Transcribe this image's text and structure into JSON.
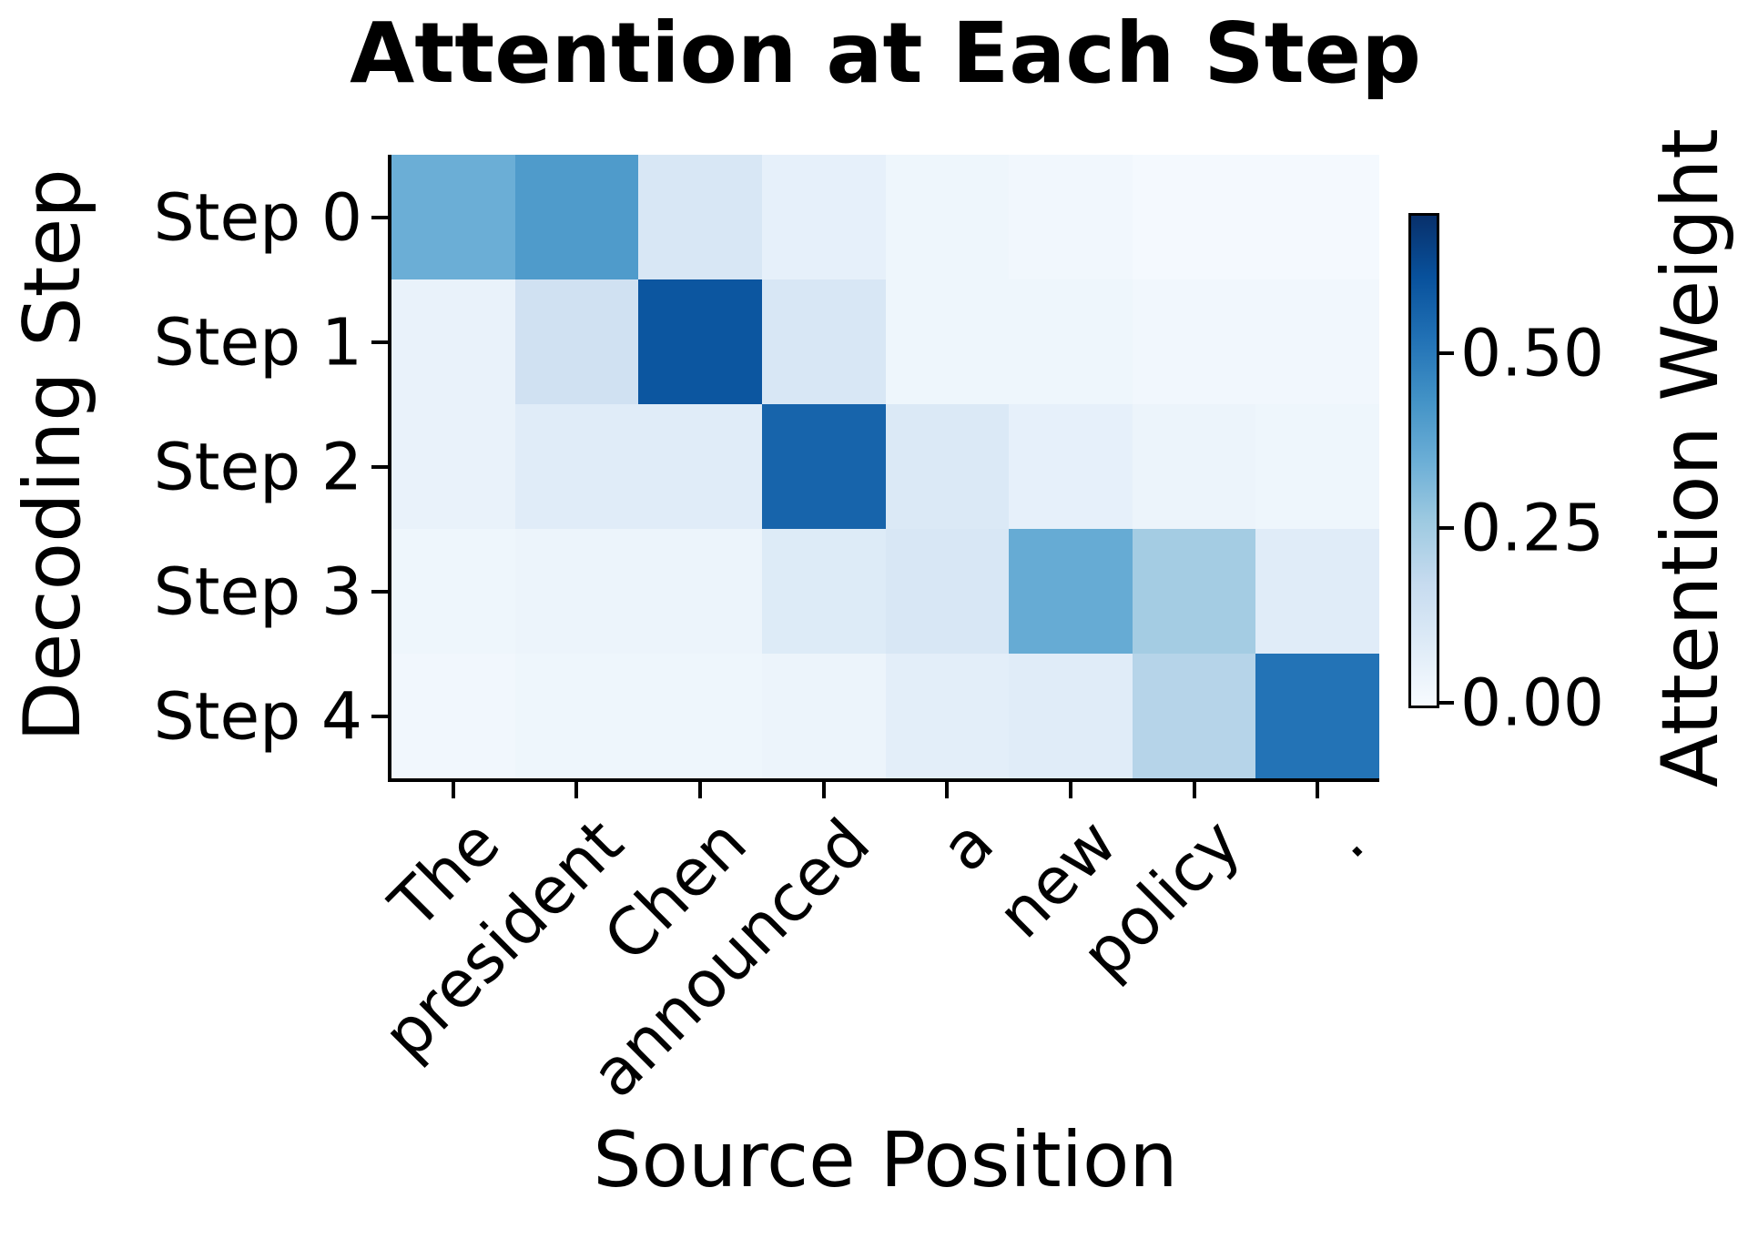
{
  "chart_data": {
    "type": "heatmap",
    "title": "Attention at Each Step",
    "xlabel": "Source Position",
    "ylabel": "Decoding Step",
    "x_labels": [
      "The",
      "president",
      "Chen",
      "announced",
      "a",
      "new",
      "policy",
      "."
    ],
    "y_labels": [
      "Step 0",
      "Step 1",
      "Step 2",
      "Step 3",
      "Step 4"
    ],
    "values": [
      [
        0.35,
        0.41,
        0.11,
        0.06,
        0.03,
        0.02,
        0.01,
        0.01
      ],
      [
        0.05,
        0.14,
        0.6,
        0.11,
        0.03,
        0.03,
        0.02,
        0.02
      ],
      [
        0.05,
        0.08,
        0.08,
        0.56,
        0.1,
        0.06,
        0.04,
        0.03
      ],
      [
        0.03,
        0.04,
        0.04,
        0.09,
        0.11,
        0.36,
        0.25,
        0.08
      ],
      [
        0.02,
        0.03,
        0.03,
        0.04,
        0.07,
        0.08,
        0.21,
        0.52
      ]
    ],
    "colorbar": {
      "label": "Attention Weight",
      "tick_labels": [
        "0.50",
        "0.25",
        "0.00"
      ],
      "tick_values": [
        0.5,
        0.25,
        0.0
      ],
      "vmin": 0.0,
      "vmax": 0.7,
      "colormap": "Blues",
      "colormap_stops": [
        "#f7fbff",
        "#deebf7",
        "#c6dbef",
        "#9ecae1",
        "#6baed6",
        "#4292c6",
        "#2171b5",
        "#08519c",
        "#08306b"
      ]
    },
    "grid": false,
    "legend": null,
    "x_tick_rotation_deg": 45,
    "spines_visible": [
      "left",
      "bottom"
    ]
  }
}
